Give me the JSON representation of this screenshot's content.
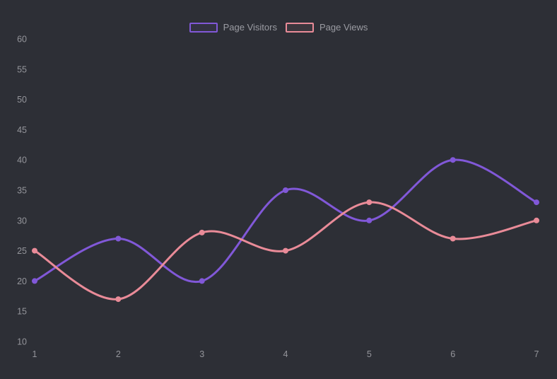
{
  "colors": {
    "background": "#2d2f36",
    "axis_label": "#94959b",
    "legend_label": "#9b9ca3"
  },
  "chart_data": {
    "type": "line",
    "categories": [
      "1",
      "2",
      "3",
      "4",
      "5",
      "6",
      "7"
    ],
    "series": [
      {
        "name": "Page Visitors",
        "color": "#8158d8",
        "values": [
          20,
          27,
          20,
          35,
          30,
          40,
          33
        ]
      },
      {
        "name": "Page Views",
        "color": "#e98b98",
        "values": [
          25,
          17,
          28,
          25,
          33,
          27,
          30
        ]
      }
    ],
    "title": "",
    "xlabel": "",
    "ylabel": "",
    "ylim": [
      10,
      60
    ],
    "ytick_step": 5,
    "grid": false,
    "legend_position": "top-center",
    "smooth": true,
    "show_points": true
  }
}
